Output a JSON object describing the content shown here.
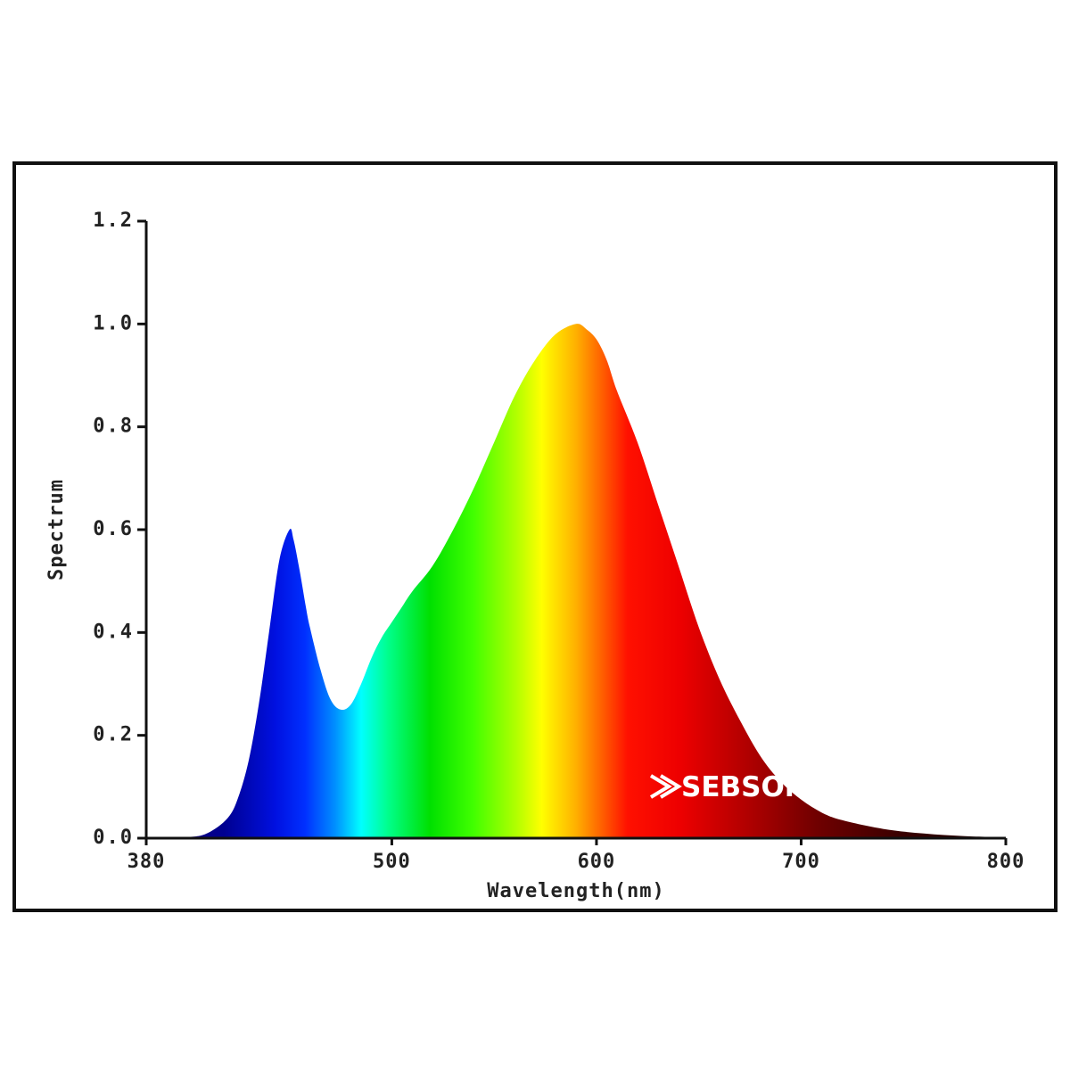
{
  "chart_data": {
    "type": "area",
    "title": "",
    "xlabel": "Wavelength(nm)",
    "ylabel": "Spectrum",
    "xlim": [
      380,
      800
    ],
    "ylim": [
      0,
      1.2
    ],
    "x_ticks": [
      380,
      500,
      600,
      700,
      800
    ],
    "x_tick_labels": [
      "380",
      "500",
      "600",
      "700",
      "800"
    ],
    "y_ticks": [
      0.0,
      0.2,
      0.4,
      0.6,
      0.8,
      1.0,
      1.2
    ],
    "y_tick_labels": [
      "0.0",
      "0.2",
      "0.4",
      "0.6",
      "0.8",
      "1.0",
      "1.2"
    ],
    "grid": false,
    "fill": "visible-spectrum gradient (violet/blue through red to dark red)",
    "series": [
      {
        "x": [
          380,
          400,
          410,
          420,
          425,
          430,
          435,
          440,
          445,
          450,
          452,
          455,
          458,
          460,
          465,
          470,
          475,
          480,
          485,
          490,
          495,
          500,
          505,
          510,
          520,
          530,
          540,
          550,
          560,
          570,
          580,
          590,
          595,
          600,
          605,
          610,
          620,
          630,
          640,
          650,
          660,
          670,
          680,
          690,
          700,
          710,
          720,
          740,
          760,
          780,
          800
        ],
        "y": [
          0.0,
          0.002,
          0.01,
          0.04,
          0.08,
          0.15,
          0.26,
          0.4,
          0.54,
          0.6,
          0.58,
          0.52,
          0.45,
          0.41,
          0.33,
          0.27,
          0.25,
          0.26,
          0.3,
          0.35,
          0.39,
          0.42,
          0.45,
          0.48,
          0.53,
          0.6,
          0.68,
          0.77,
          0.86,
          0.93,
          0.98,
          1.0,
          0.99,
          0.97,
          0.93,
          0.87,
          0.77,
          0.65,
          0.53,
          0.41,
          0.31,
          0.23,
          0.16,
          0.11,
          0.075,
          0.05,
          0.035,
          0.018,
          0.009,
          0.004,
          0.002
        ]
      }
    ]
  },
  "watermark": {
    "brand": "SEBSON",
    "color": "#ffffff"
  }
}
